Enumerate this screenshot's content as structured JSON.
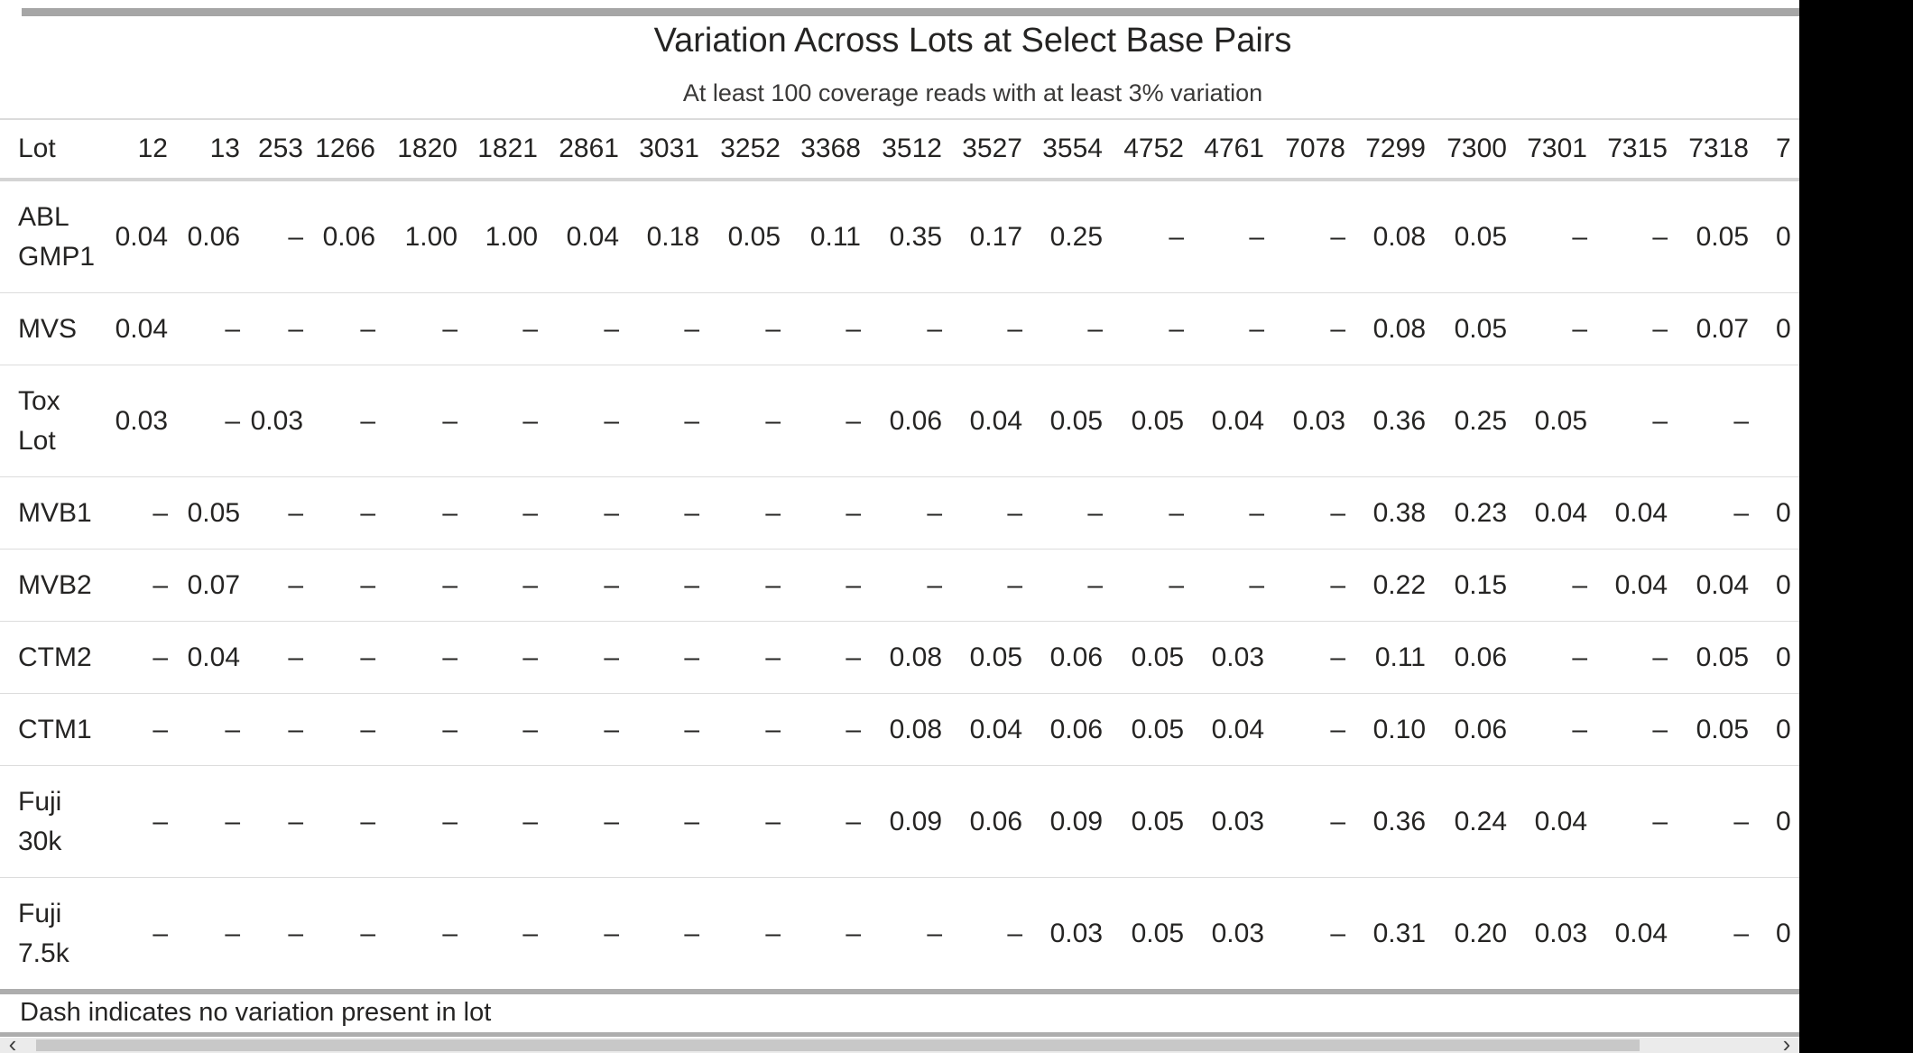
{
  "chart_data": {
    "type": "table",
    "title": "Variation Across Lots at Select Base Pairs",
    "subtitle": "At least 100 coverage reads with at least 3% variation",
    "note": "Dash indicates no variation present in lot",
    "corner_label": "Lot",
    "no_variation_symbol": "–",
    "columns": [
      "12",
      "13",
      "253",
      "1266",
      "1820",
      "1821",
      "2861",
      "3031",
      "3252",
      "3368",
      "3512",
      "3527",
      "3554",
      "4752",
      "4761",
      "7078",
      "7299",
      "7300",
      "7301",
      "7315",
      "7318"
    ],
    "clipped_column_label": "7",
    "rows": [
      {
        "label": "ABL GMP1",
        "values": [
          "0.04",
          "0.06",
          "–",
          "0.06",
          "1.00",
          "1.00",
          "0.04",
          "0.18",
          "0.05",
          "0.11",
          "0.35",
          "0.17",
          "0.25",
          "–",
          "–",
          "–",
          "0.08",
          "0.05",
          "–",
          "–",
          "0.05"
        ],
        "clipped_value": "0"
      },
      {
        "label": "MVS",
        "values": [
          "0.04",
          "–",
          "–",
          "–",
          "–",
          "–",
          "–",
          "–",
          "–",
          "–",
          "–",
          "–",
          "–",
          "–",
          "–",
          "–",
          "0.08",
          "0.05",
          "–",
          "–",
          "0.07"
        ],
        "clipped_value": "0"
      },
      {
        "label": "Tox Lot",
        "values": [
          "0.03",
          "–",
          "0.03",
          "–",
          "–",
          "–",
          "–",
          "–",
          "–",
          "–",
          "0.06",
          "0.04",
          "0.05",
          "0.05",
          "0.04",
          "0.03",
          "0.36",
          "0.25",
          "0.05",
          "–",
          "–"
        ],
        "clipped_value": ""
      },
      {
        "label": "MVB1",
        "values": [
          "–",
          "0.05",
          "–",
          "–",
          "–",
          "–",
          "–",
          "–",
          "–",
          "–",
          "–",
          "–",
          "–",
          "–",
          "–",
          "–",
          "0.38",
          "0.23",
          "0.04",
          "0.04",
          "–"
        ],
        "clipped_value": "0"
      },
      {
        "label": "MVB2",
        "values": [
          "–",
          "0.07",
          "–",
          "–",
          "–",
          "–",
          "–",
          "–",
          "–",
          "–",
          "–",
          "–",
          "–",
          "–",
          "–",
          "–",
          "0.22",
          "0.15",
          "–",
          "0.04",
          "0.04"
        ],
        "clipped_value": "0"
      },
      {
        "label": "CTM2",
        "values": [
          "–",
          "0.04",
          "–",
          "–",
          "–",
          "–",
          "–",
          "–",
          "–",
          "–",
          "0.08",
          "0.05",
          "0.06",
          "0.05",
          "0.03",
          "–",
          "0.11",
          "0.06",
          "–",
          "–",
          "0.05"
        ],
        "clipped_value": "0"
      },
      {
        "label": "CTM1",
        "values": [
          "–",
          "–",
          "–",
          "–",
          "–",
          "–",
          "–",
          "–",
          "–",
          "–",
          "0.08",
          "0.04",
          "0.06",
          "0.05",
          "0.04",
          "–",
          "0.10",
          "0.06",
          "–",
          "–",
          "0.05"
        ],
        "clipped_value": "0"
      },
      {
        "label": "Fuji 30k",
        "values": [
          "–",
          "–",
          "–",
          "–",
          "–",
          "–",
          "–",
          "–",
          "–",
          "–",
          "0.09",
          "0.06",
          "0.09",
          "0.05",
          "0.03",
          "–",
          "0.36",
          "0.24",
          "0.04",
          "–",
          "–"
        ],
        "clipped_value": "0"
      },
      {
        "label": "Fuji 7.5k",
        "values": [
          "–",
          "–",
          "–",
          "–",
          "–",
          "–",
          "–",
          "–",
          "–",
          "–",
          "–",
          "–",
          "0.03",
          "0.05",
          "0.03",
          "–",
          "0.31",
          "0.20",
          "0.03",
          "0.04",
          "–"
        ],
        "clipped_value": "0"
      }
    ]
  },
  "scrollbar": {
    "left_arrow": "‹",
    "right_arrow": "›"
  },
  "colors": {
    "text": "#252423",
    "row_divider": "#dcdcdc",
    "header_divider": "#d4d4d4",
    "section_band": "#adadad",
    "top_bar": "#a6a6a6",
    "scroll_track": "#ebebeb",
    "scroll_thumb": "#c8c8c8",
    "side_strip": "#000000"
  }
}
